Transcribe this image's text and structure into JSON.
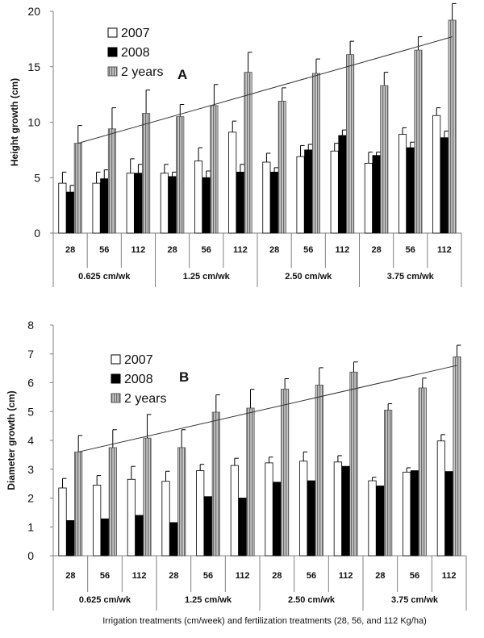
{
  "chart_data": [
    {
      "type": "bar",
      "panel": "A",
      "ylabel": "Height growth (cm)",
      "ylim": [
        0,
        20
      ],
      "yticks": [
        0,
        5,
        10,
        15,
        20
      ],
      "categories": [
        "28",
        "56",
        "112",
        "28",
        "56",
        "112",
        "28",
        "56",
        "112",
        "28",
        "56",
        "112"
      ],
      "groups": [
        "0.625 cm/wk",
        "1.25 cm/wk",
        "2.50 cm/wk",
        "3.75 cm/wk"
      ],
      "legend": [
        "2007",
        "2008",
        "2 years"
      ],
      "legend_position": "top-left",
      "series": [
        {
          "name": "2007",
          "color": "#ffffff",
          "values": [
            4.5,
            4.5,
            5.4,
            5.4,
            6.5,
            9.1,
            6.4,
            6.9,
            7.4,
            6.3,
            8.9,
            10.6
          ],
          "errors": [
            1.0,
            1.0,
            1.3,
            0.8,
            1.2,
            1.0,
            0.8,
            1.0,
            0.7,
            1.0,
            0.6,
            0.7
          ]
        },
        {
          "name": "2008",
          "color": "#000000",
          "values": [
            3.7,
            4.9,
            5.4,
            5.1,
            5.0,
            5.5,
            5.5,
            7.5,
            8.8,
            7.0,
            7.7,
            8.6
          ],
          "errors": [
            0.6,
            0.8,
            0.8,
            0.4,
            0.6,
            0.7,
            0.4,
            0.5,
            0.5,
            0.3,
            0.5,
            0.6
          ]
        },
        {
          "name": "2 years",
          "color": "#9a9a9a",
          "values": [
            8.1,
            9.4,
            10.8,
            10.5,
            11.5,
            14.5,
            11.9,
            14.4,
            16.1,
            13.3,
            16.5,
            19.2
          ],
          "errors": [
            1.6,
            1.9,
            2.1,
            1.1,
            1.9,
            1.8,
            1.2,
            1.3,
            1.2,
            1.2,
            1.2,
            1.5
          ]
        }
      ],
      "trendline": {
        "from": 8.1,
        "to": 17.7
      }
    },
    {
      "type": "bar",
      "panel": "B",
      "ylabel": "Diameter growth (cm)",
      "ylim": [
        0,
        8
      ],
      "yticks": [
        0,
        1,
        2,
        3,
        4,
        5,
        6,
        7,
        8
      ],
      "categories": [
        "28",
        "56",
        "112",
        "28",
        "56",
        "112",
        "28",
        "56",
        "112",
        "28",
        "56",
        "112"
      ],
      "groups": [
        "0.625 cm/wk",
        "1.25 cm/wk",
        "2.50 cm/wk",
        "3.75 cm/wk"
      ],
      "legend": [
        "2007",
        "2008",
        "2 years"
      ],
      "legend_position": "top-left",
      "xlabel": "Irrigation treatments (cm/week) and fertilization treatments (28, 56, and 112 Kg/ha)",
      "series": [
        {
          "name": "2007",
          "color": "#ffffff",
          "values": [
            2.35,
            2.45,
            2.65,
            2.58,
            2.95,
            3.13,
            3.22,
            3.28,
            3.25,
            2.6,
            2.9,
            3.98
          ],
          "errors": [
            0.33,
            0.33,
            0.45,
            0.35,
            0.22,
            0.25,
            0.2,
            0.32,
            0.22,
            0.12,
            0.15,
            0.22
          ]
        },
        {
          "name": "2008",
          "color": "#000000",
          "values": [
            1.22,
            1.28,
            1.4,
            1.15,
            2.05,
            2.0,
            2.55,
            2.6,
            3.1,
            2.42,
            2.95,
            2.92
          ]
        },
        {
          "name": "2 years",
          "color": "#9a9a9a",
          "values": [
            3.6,
            3.75,
            4.08,
            3.75,
            4.98,
            5.12,
            5.78,
            5.92,
            6.37,
            5.05,
            5.82,
            6.9
          ],
          "errors": [
            0.57,
            0.62,
            0.82,
            0.62,
            0.6,
            0.65,
            0.36,
            0.6,
            0.35,
            0.22,
            0.34,
            0.4
          ]
        }
      ],
      "trendline": {
        "from": 3.6,
        "to": 6.6
      }
    }
  ],
  "colors": {
    "bar_2007": "#ffffff",
    "bar_2008": "#000000",
    "bar_2years": "#9a9a9a",
    "axis": "#808080"
  }
}
